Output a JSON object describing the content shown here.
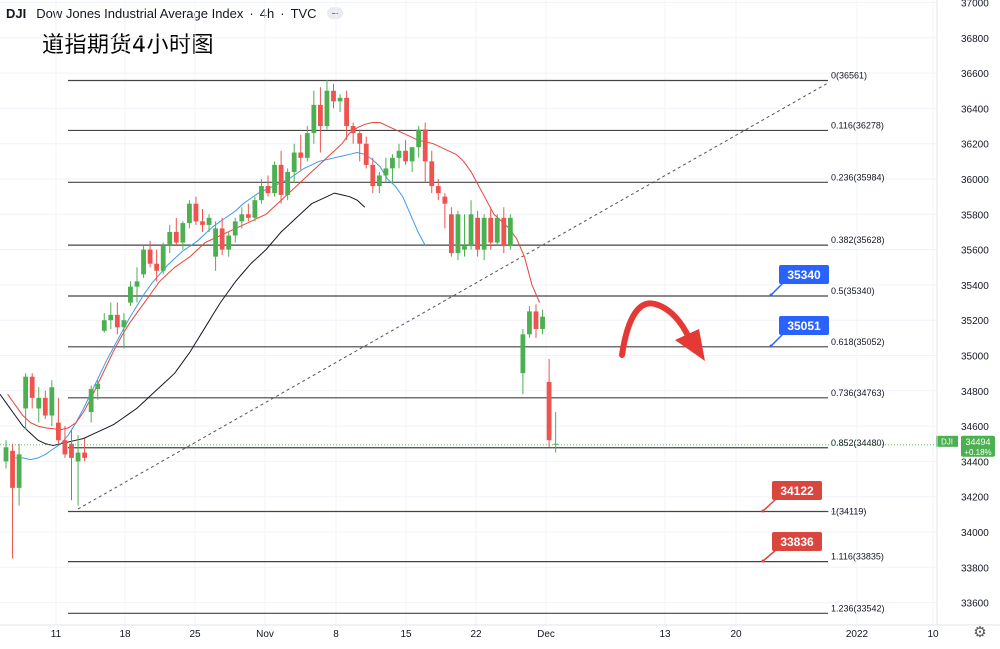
{
  "header": {
    "symbol": "DJI",
    "name": "Dow Jones Industrial Average Index",
    "interval": "4h",
    "source": "TVC"
  },
  "subtitle": "道指期货4小时图",
  "settings_icon": "gear-icon",
  "colors": {
    "up": "#4caf50",
    "down": "#ef5350",
    "ema_red": "#e8443a",
    "ema_blue": "#3d9be9",
    "ema_black": "#131722",
    "fib_line": "#444444",
    "badge_blue": "#2962ff",
    "badge_red": "#d9463e",
    "last_price_bg": "#4caf50"
  },
  "chart_data": {
    "type": "candlestick",
    "y_axis": {
      "range": [
        33540,
        37000
      ],
      "ticks": [
        "37000",
        "36800",
        "36600",
        "36400",
        "36200",
        "36000",
        "35800",
        "35600",
        "35400",
        "35200",
        "35000",
        "34800",
        "34600",
        "34400",
        "34200",
        "34000",
        "33800",
        "33600"
      ]
    },
    "x_axis": {
      "ticks": [
        "11",
        "18",
        "25",
        "Nov",
        "8",
        "15",
        "22",
        "Dec",
        "13",
        "20",
        "2022",
        "10"
      ]
    },
    "last_price": {
      "symbol": "DJI",
      "value": "34494",
      "change": "+0.18%"
    },
    "fib_levels": [
      {
        "ratio": "0",
        "price": 36561,
        "label": "0(36561)"
      },
      {
        "ratio": "0.116",
        "price": 36278,
        "label": "0.116(36278)"
      },
      {
        "ratio": "0.236",
        "price": 35984,
        "label": "0.236(35984)"
      },
      {
        "ratio": "0.382",
        "price": 35628,
        "label": "0.382(35628)"
      },
      {
        "ratio": "0.5",
        "price": 35340,
        "label": "0.5(35340)"
      },
      {
        "ratio": "0.618",
        "price": 35052,
        "label": "0.618(35052)"
      },
      {
        "ratio": "0.736",
        "price": 34763,
        "label": "0.736(34763)"
      },
      {
        "ratio": "0.852",
        "price": 34480,
        "label": "0.852(34480)"
      },
      {
        "ratio": "1",
        "price": 34119,
        "label": "1(34119)"
      },
      {
        "ratio": "1.116",
        "price": 33835,
        "label": "1.116(33835)"
      },
      {
        "ratio": "1.236",
        "price": 33542,
        "label": "1.236(33542)"
      }
    ],
    "badges": [
      {
        "text": "35340",
        "color": "blue",
        "price": 35340
      },
      {
        "text": "35051",
        "color": "blue",
        "price": 35051
      },
      {
        "text": "34122",
        "color": "red",
        "price": 34122
      },
      {
        "text": "33836",
        "color": "red",
        "price": 33836
      }
    ],
    "candles": [
      {
        "o": 34400,
        "h": 34520,
        "l": 34360,
        "c": 34480
      },
      {
        "o": 34460,
        "h": 34500,
        "l": 33850,
        "c": 34250
      },
      {
        "o": 34250,
        "h": 34500,
        "l": 34150,
        "c": 34440
      },
      {
        "o": 34700,
        "h": 34900,
        "l": 34580,
        "c": 34880
      },
      {
        "o": 34880,
        "h": 34900,
        "l": 34700,
        "c": 34760
      },
      {
        "o": 34700,
        "h": 34820,
        "l": 34620,
        "c": 34760
      },
      {
        "o": 34760,
        "h": 34800,
        "l": 34640,
        "c": 34660
      },
      {
        "o": 34660,
        "h": 34860,
        "l": 34600,
        "c": 34820
      },
      {
        "o": 34620,
        "h": 34760,
        "l": 34500,
        "c": 34520
      },
      {
        "o": 34520,
        "h": 34600,
        "l": 34420,
        "c": 34440
      },
      {
        "o": 34500,
        "h": 34580,
        "l": 34180,
        "c": 34420
      },
      {
        "o": 34400,
        "h": 34550,
        "l": 34150,
        "c": 34450
      },
      {
        "o": 34450,
        "h": 34530,
        "l": 34400,
        "c": 34420
      },
      {
        "o": 34680,
        "h": 34830,
        "l": 34620,
        "c": 34810
      },
      {
        "o": 34810,
        "h": 34860,
        "l": 34750,
        "c": 34840
      },
      {
        "o": 35140,
        "h": 35240,
        "l": 35130,
        "c": 35200
      },
      {
        "o": 35200,
        "h": 35300,
        "l": 35150,
        "c": 35230
      },
      {
        "o": 35230,
        "h": 35300,
        "l": 35120,
        "c": 35160
      },
      {
        "o": 35160,
        "h": 35240,
        "l": 35040,
        "c": 35200
      },
      {
        "o": 35300,
        "h": 35420,
        "l": 35280,
        "c": 35390
      },
      {
        "o": 35390,
        "h": 35500,
        "l": 35300,
        "c": 35420
      },
      {
        "o": 35460,
        "h": 35620,
        "l": 35440,
        "c": 35600
      },
      {
        "o": 35600,
        "h": 35650,
        "l": 35500,
        "c": 35520
      },
      {
        "o": 35520,
        "h": 35600,
        "l": 35420,
        "c": 35480
      },
      {
        "o": 35480,
        "h": 35640,
        "l": 35460,
        "c": 35620
      },
      {
        "o": 35620,
        "h": 35740,
        "l": 35580,
        "c": 35700
      },
      {
        "o": 35700,
        "h": 35780,
        "l": 35620,
        "c": 35640
      },
      {
        "o": 35640,
        "h": 35760,
        "l": 35600,
        "c": 35750
      },
      {
        "o": 35750,
        "h": 35880,
        "l": 35720,
        "c": 35860
      },
      {
        "o": 35860,
        "h": 35900,
        "l": 35740,
        "c": 35760
      },
      {
        "o": 35760,
        "h": 35830,
        "l": 35700,
        "c": 35740
      },
      {
        "o": 35740,
        "h": 35800,
        "l": 35700,
        "c": 35780
      },
      {
        "o": 35560,
        "h": 35760,
        "l": 35480,
        "c": 35720
      },
      {
        "o": 35720,
        "h": 35780,
        "l": 35570,
        "c": 35600
      },
      {
        "o": 35600,
        "h": 35700,
        "l": 35560,
        "c": 35680
      },
      {
        "o": 35680,
        "h": 35780,
        "l": 35640,
        "c": 35760
      },
      {
        "o": 35760,
        "h": 35840,
        "l": 35720,
        "c": 35800
      },
      {
        "o": 35800,
        "h": 35860,
        "l": 35760,
        "c": 35780
      },
      {
        "o": 35780,
        "h": 35900,
        "l": 35760,
        "c": 35880
      },
      {
        "o": 35880,
        "h": 36000,
        "l": 35860,
        "c": 35960
      },
      {
        "o": 35960,
        "h": 36020,
        "l": 35900,
        "c": 35920
      },
      {
        "o": 35920,
        "h": 36100,
        "l": 35900,
        "c": 36080
      },
      {
        "o": 36080,
        "h": 36160,
        "l": 35860,
        "c": 35910
      },
      {
        "o": 35910,
        "h": 36060,
        "l": 35880,
        "c": 36040
      },
      {
        "o": 36040,
        "h": 36200,
        "l": 35980,
        "c": 36150
      },
      {
        "o": 36150,
        "h": 36250,
        "l": 36050,
        "c": 36120
      },
      {
        "o": 36120,
        "h": 36300,
        "l": 36100,
        "c": 36260
      },
      {
        "o": 36260,
        "h": 36500,
        "l": 36200,
        "c": 36420
      },
      {
        "o": 36420,
        "h": 36520,
        "l": 36150,
        "c": 36300
      },
      {
        "o": 36300,
        "h": 36561,
        "l": 36280,
        "c": 36500
      },
      {
        "o": 36500,
        "h": 36540,
        "l": 36400,
        "c": 36440
      },
      {
        "o": 36440,
        "h": 36480,
        "l": 36380,
        "c": 36460
      },
      {
        "o": 36460,
        "h": 36500,
        "l": 36220,
        "c": 36300
      },
      {
        "o": 36300,
        "h": 36320,
        "l": 36200,
        "c": 36260
      },
      {
        "o": 36260,
        "h": 36280,
        "l": 36100,
        "c": 36200
      },
      {
        "o": 36200,
        "h": 36240,
        "l": 36060,
        "c": 36080
      },
      {
        "o": 36080,
        "h": 36120,
        "l": 35920,
        "c": 35960
      },
      {
        "o": 35960,
        "h": 36040,
        "l": 35920,
        "c": 36020
      },
      {
        "o": 36020,
        "h": 36120,
        "l": 35980,
        "c": 36060
      },
      {
        "o": 36060,
        "h": 36140,
        "l": 35980,
        "c": 36120
      },
      {
        "o": 36120,
        "h": 36200,
        "l": 36060,
        "c": 36160
      },
      {
        "o": 36160,
        "h": 36220,
        "l": 36080,
        "c": 36100
      },
      {
        "o": 36100,
        "h": 36180,
        "l": 36040,
        "c": 36180
      },
      {
        "o": 36180,
        "h": 36300,
        "l": 36120,
        "c": 36280
      },
      {
        "o": 36280,
        "h": 36320,
        "l": 35980,
        "c": 36100
      },
      {
        "o": 36100,
        "h": 36160,
        "l": 35920,
        "c": 35960
      },
      {
        "o": 35960,
        "h": 36000,
        "l": 35880,
        "c": 35920
      },
      {
        "o": 35900,
        "h": 35920,
        "l": 35720,
        "c": 35860
      },
      {
        "o": 35800,
        "h": 35840,
        "l": 35560,
        "c": 35580
      },
      {
        "o": 35580,
        "h": 35820,
        "l": 35540,
        "c": 35800
      },
      {
        "o": 35600,
        "h": 35800,
        "l": 35560,
        "c": 35620
      },
      {
        "o": 35620,
        "h": 35880,
        "l": 35600,
        "c": 35800
      },
      {
        "o": 35780,
        "h": 35820,
        "l": 35560,
        "c": 35600
      },
      {
        "o": 35600,
        "h": 35800,
        "l": 35540,
        "c": 35780
      },
      {
        "o": 35780,
        "h": 35840,
        "l": 35600,
        "c": 35640
      },
      {
        "o": 35640,
        "h": 35800,
        "l": 35620,
        "c": 35780
      },
      {
        "o": 35780,
        "h": 35840,
        "l": 35580,
        "c": 35620
      },
      {
        "o": 35620,
        "h": 35800,
        "l": 35600,
        "c": 35780
      },
      {
        "o": 34900,
        "h": 35150,
        "l": 34780,
        "c": 35120
      },
      {
        "o": 35120,
        "h": 35280,
        "l": 35100,
        "c": 35250
      },
      {
        "o": 35250,
        "h": 35290,
        "l": 35100,
        "c": 35150
      },
      {
        "o": 35150,
        "h": 35260,
        "l": 35120,
        "c": 35220
      },
      {
        "o": 34850,
        "h": 34980,
        "l": 34480,
        "c": 34520
      },
      {
        "o": 34500,
        "h": 34680,
        "l": 34450,
        "c": 34500
      }
    ],
    "ema_red": [
      34780,
      34720,
      34660,
      34620,
      34600,
      34590,
      34585,
      34580,
      34590,
      34620,
      34680,
      34760,
      34850,
      34940,
      35030,
      35110,
      35180,
      35240,
      35300,
      35360,
      35420,
      35460,
      35500,
      35530,
      35560,
      35600,
      35640,
      35660,
      35680,
      35700,
      35720,
      35740,
      35760,
      35780,
      35800,
      35840,
      35880,
      35920,
      35960,
      36000,
      36040,
      36080,
      36120,
      36160,
      36200,
      36260,
      36290,
      36310,
      36320,
      36320,
      36300,
      36280,
      36260,
      36240,
      36220,
      36210,
      36200,
      36180,
      36160,
      36140,
      36100,
      36040,
      35960,
      35880,
      35800,
      35760,
      35720,
      35660,
      35560,
      35400,
      35300
    ],
    "ema_blue": [
      34420,
      34420,
      34410,
      34420,
      34440,
      34470,
      34500,
      34550,
      34620,
      34700,
      34790,
      34880,
      34970,
      35050,
      35130,
      35210,
      35280,
      35350,
      35410,
      35460,
      35510,
      35550,
      35590,
      35620,
      35650,
      35690,
      35730,
      35760,
      35790,
      35820,
      35860,
      35890,
      35920,
      35940,
      35960,
      35980,
      36000,
      36030,
      36060,
      36080,
      36100,
      36110,
      36120,
      36130,
      36140,
      36150,
      36140,
      36110,
      36070,
      36000,
      35960,
      35900,
      35800,
      35700,
      35620
    ],
    "ema_black": [
      34780,
      34720,
      34660,
      34600,
      34560,
      34520,
      34500,
      34490,
      34500,
      34510,
      34520,
      34530,
      34550,
      34570,
      34590,
      34610,
      34640,
      34670,
      34700,
      34740,
      34780,
      34820,
      34860,
      34900,
      34960,
      35020,
      35090,
      35160,
      35230,
      35300,
      35360,
      35420,
      35470,
      35520,
      35560,
      35600,
      35650,
      35700,
      35740,
      35780,
      35820,
      35860,
      35880,
      35900,
      35920,
      35910,
      35900,
      35880,
      35840
    ]
  }
}
